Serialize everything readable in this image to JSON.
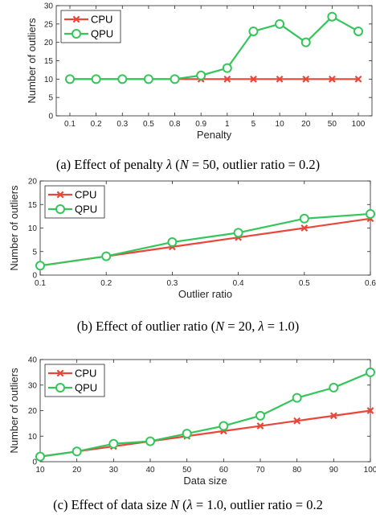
{
  "colors": {
    "cpu": "#e8473a",
    "qpu": "#35c65b",
    "axis": "#262626"
  },
  "chart_data": [
    {
      "type": "line",
      "x_scale": "categorical",
      "categories": [
        "0.1",
        "0.2",
        "0.3",
        "0.5",
        "0.8",
        "0.9",
        "1",
        "5",
        "10",
        "20",
        "50",
        "100"
      ],
      "series": [
        {
          "name": "CPU",
          "marker": "x",
          "values": [
            10,
            10,
            10,
            10,
            10,
            10,
            10,
            10,
            10,
            10,
            10,
            10
          ]
        },
        {
          "name": "QPU",
          "marker": "o",
          "values": [
            10,
            10,
            10,
            10,
            10,
            11,
            13,
            23,
            25,
            20,
            27,
            23
          ]
        }
      ],
      "xlabel": "Penalty",
      "ylabel": "Number of outliers",
      "ylim": [
        0,
        30
      ],
      "yticks": [
        "0",
        "5",
        "10",
        "15",
        "20",
        "25",
        "30"
      ],
      "legend_position": "top-left",
      "caption_parts": [
        "(a) Effect of penalty ",
        "λ",
        " (",
        "N",
        " = 50, outlier ratio = 0.2)"
      ]
    },
    {
      "type": "line",
      "x_scale": "linear",
      "x": [
        0.1,
        0.2,
        0.3,
        0.4,
        0.5,
        0.6
      ],
      "xticks": [
        "0.1",
        "0.2",
        "0.3",
        "0.4",
        "0.5",
        "0.6"
      ],
      "xlim": [
        0.1,
        0.6
      ],
      "series": [
        {
          "name": "CPU",
          "marker": "x",
          "values": [
            2,
            4,
            6,
            8,
            10,
            12
          ]
        },
        {
          "name": "QPU",
          "marker": "o",
          "values": [
            2,
            4,
            7,
            9,
            12,
            13
          ]
        }
      ],
      "xlabel": "Outlier ratio",
      "ylabel": "Number of outliers",
      "ylim": [
        0,
        20
      ],
      "yticks": [
        "0",
        "5",
        "10",
        "15",
        "20"
      ],
      "legend_position": "top-left",
      "caption_parts": [
        "(b) Effect of outlier ratio (",
        "N",
        " = 20, ",
        "λ",
        " = 1.0)"
      ]
    },
    {
      "type": "line",
      "x_scale": "linear",
      "x": [
        10,
        20,
        30,
        40,
        50,
        60,
        70,
        80,
        90,
        100
      ],
      "xticks": [
        "10",
        "20",
        "30",
        "40",
        "50",
        "60",
        "70",
        "80",
        "90",
        "100"
      ],
      "xlim": [
        10,
        100
      ],
      "series": [
        {
          "name": "CPU",
          "marker": "x",
          "values": [
            2,
            4,
            6,
            8,
            10,
            12,
            14,
            16,
            18,
            20
          ]
        },
        {
          "name": "QPU",
          "marker": "o",
          "values": [
            2,
            4,
            7,
            8,
            11,
            14,
            18,
            25,
            29,
            35
          ]
        }
      ],
      "xlabel": "Data size",
      "ylabel": "Number of outliers",
      "ylim": [
        0,
        40
      ],
      "yticks": [
        "0",
        "10",
        "20",
        "30",
        "40"
      ],
      "legend_position": "top-left",
      "caption_parts": [
        "(c) Effect of data size ",
        "N",
        " (",
        "λ",
        " = 1.0, outlier ratio = 0.2"
      ]
    }
  ]
}
